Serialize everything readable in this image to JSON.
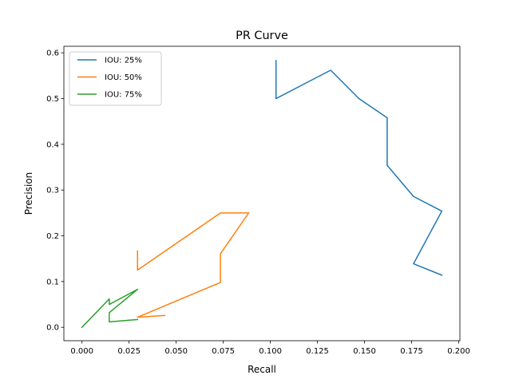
{
  "chart_data": {
    "type": "line",
    "title": "PR Curve",
    "xlabel": "Recall",
    "ylabel": "Precision",
    "xlim": [
      -0.0096,
      0.2006
    ],
    "ylim": [
      -0.0293,
      0.6143
    ],
    "xticks": [
      0.0,
      0.025,
      0.05,
      0.075,
      0.1,
      0.125,
      0.15,
      0.175,
      0.2
    ],
    "xtick_labels": [
      "0.000",
      "0.025",
      "0.050",
      "0.075",
      "0.100",
      "0.125",
      "0.150",
      "0.175",
      "0.200"
    ],
    "yticks": [
      0.0,
      0.1,
      0.2,
      0.3,
      0.4,
      0.5,
      0.6
    ],
    "ytick_labels": [
      "0.0",
      "0.1",
      "0.2",
      "0.3",
      "0.4",
      "0.5",
      "0.6"
    ],
    "grid": false,
    "legend_position": "upper-left",
    "series": [
      {
        "name": "IOU: 25%",
        "color": "#1f77b4",
        "points": [
          [
            0.103,
            0.583
          ],
          [
            0.103,
            0.5
          ],
          [
            0.132,
            0.562
          ],
          [
            0.147,
            0.5
          ],
          [
            0.162,
            0.458
          ],
          [
            0.162,
            0.354
          ],
          [
            0.176,
            0.286
          ],
          [
            0.191,
            0.254
          ],
          [
            0.176,
            0.139
          ],
          [
            0.191,
            0.114
          ]
        ]
      },
      {
        "name": "IOU: 50%",
        "color": "#ff7f0e",
        "points": [
          [
            0.0295,
            0.167
          ],
          [
            0.0295,
            0.125
          ],
          [
            0.0735,
            0.25
          ],
          [
            0.0885,
            0.25
          ],
          [
            0.0735,
            0.161
          ],
          [
            0.0735,
            0.098
          ],
          [
            0.0295,
            0.022
          ],
          [
            0.044,
            0.026
          ]
        ]
      },
      {
        "name": "IOU: 75%",
        "color": "#2ca02c",
        "points": [
          [
            0.0,
            0.0
          ],
          [
            0.0145,
            0.062
          ],
          [
            0.0145,
            0.05
          ],
          [
            0.0295,
            0.083
          ],
          [
            0.0145,
            0.032
          ],
          [
            0.0145,
            0.012
          ],
          [
            0.0295,
            0.017
          ]
        ]
      }
    ]
  }
}
